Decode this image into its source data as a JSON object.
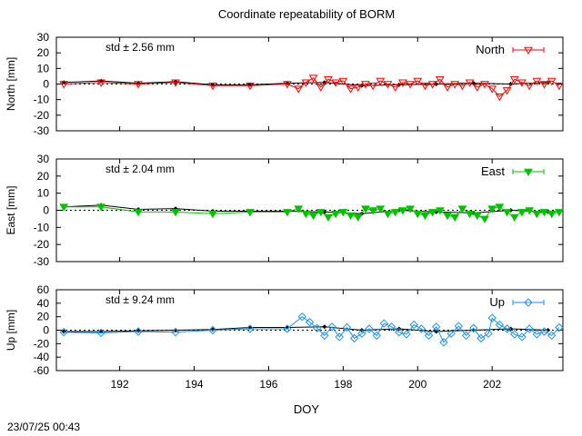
{
  "title": "Coordinate repeatability of BORM",
  "xlabel": "DOY",
  "timestamp": "23/07/25 00:43",
  "chart_data": [
    {
      "type": "line",
      "name": "North",
      "ylabel": "North [mm]",
      "std_label": "std ± 2.56 mm",
      "color": "#ff0000",
      "marker": "triangle-down-open",
      "xlim": [
        190.3,
        203.9
      ],
      "ylim": [
        -30,
        30
      ],
      "yticks": [
        -30,
        -20,
        -10,
        0,
        10,
        20,
        30
      ],
      "xticks": [
        192,
        194,
        196,
        198,
        200,
        202
      ],
      "daily": {
        "x": [
          190.5,
          191.5,
          192.5,
          193.5,
          194.5,
          195.5,
          196.5,
          197.5,
          198.5,
          199.5,
          200.5,
          201.5,
          202.5,
          203.5
        ],
        "y": [
          1,
          2,
          0.5,
          1.5,
          -0.5,
          -0.5,
          0.5,
          1,
          -1,
          -0.5,
          0,
          0.5,
          0,
          1
        ]
      },
      "series": [
        {
          "name": "North",
          "x": [
            190.5,
            191.5,
            192.5,
            193.5,
            194.5,
            195.5,
            196.5,
            196.8,
            197.0,
            197.2,
            197.4,
            197.6,
            197.8,
            198.0,
            198.2,
            198.4,
            198.6,
            198.8,
            199.0,
            199.2,
            199.4,
            199.6,
            199.8,
            200.0,
            200.2,
            200.4,
            200.6,
            200.8,
            201.0,
            201.2,
            201.4,
            201.6,
            201.8,
            202.0,
            202.2,
            202.4,
            202.6,
            202.8,
            203.0,
            203.2,
            203.4,
            203.6,
            203.8
          ],
          "y": [
            0,
            1,
            0,
            1,
            -1,
            -1,
            0,
            -3,
            1,
            4,
            -2,
            3,
            1,
            2,
            -3,
            -2,
            0,
            -1,
            2,
            0,
            -2,
            1,
            0,
            2,
            -1,
            0,
            3,
            -2,
            0,
            -1,
            1,
            -2,
            0,
            -3,
            -8,
            -4,
            3,
            1,
            -1,
            2,
            0,
            2,
            -1
          ]
        }
      ]
    },
    {
      "type": "line",
      "name": "East",
      "ylabel": "East [mm]",
      "std_label": "std ± 2.04 mm",
      "color": "#00c000",
      "marker": "triangle-down-filled",
      "xlim": [
        190.3,
        203.9
      ],
      "ylim": [
        -30,
        30
      ],
      "yticks": [
        -30,
        -20,
        -10,
        0,
        10,
        20,
        30
      ],
      "xticks": [
        192,
        194,
        196,
        198,
        200,
        202
      ],
      "daily": {
        "x": [
          190.5,
          191.5,
          192.5,
          193.5,
          194.5,
          195.5,
          196.5,
          197.5,
          198.5,
          199.5,
          200.5,
          201.5,
          202.5,
          203.5
        ],
        "y": [
          2,
          3,
          0.5,
          1,
          -0.5,
          -0.5,
          -0.5,
          -1,
          -2,
          0,
          -1,
          -1.5,
          0,
          -1
        ]
      },
      "series": [
        {
          "name": "East",
          "x": [
            190.5,
            191.5,
            192.5,
            193.5,
            194.5,
            195.5,
            196.5,
            196.8,
            197.0,
            197.2,
            197.4,
            197.6,
            197.8,
            198.0,
            198.2,
            198.4,
            198.6,
            198.8,
            199.0,
            199.2,
            199.4,
            199.6,
            199.8,
            200.0,
            200.2,
            200.4,
            200.6,
            200.8,
            201.0,
            201.2,
            201.4,
            201.6,
            201.8,
            202.0,
            202.2,
            202.4,
            202.6,
            202.8,
            203.0,
            203.2,
            203.4,
            203.6,
            203.8
          ],
          "y": [
            2,
            2,
            -1,
            -1,
            -2,
            -1,
            -1,
            1,
            -2,
            -3,
            -1,
            -4,
            -2,
            -1,
            -3,
            -4,
            1,
            0,
            1,
            -2,
            -1,
            0,
            1,
            -2,
            -3,
            -1,
            0,
            -3,
            -4,
            1,
            -2,
            -3,
            -5,
            1,
            2,
            -1,
            -4,
            -1,
            0,
            -2,
            -1,
            -2,
            -1
          ]
        }
      ]
    },
    {
      "type": "line",
      "name": "Up",
      "ylabel": "Up [mm]",
      "std_label": "std ± 9.24 mm",
      "color": "#1e90e6",
      "marker": "diamond-open",
      "xlim": [
        190.3,
        203.9
      ],
      "ylim": [
        -60,
        60
      ],
      "yticks": [
        -60,
        -40,
        -20,
        0,
        20,
        40,
        60
      ],
      "xticks": [
        192,
        194,
        196,
        198,
        200,
        202
      ],
      "daily": {
        "x": [
          190.5,
          191.5,
          192.5,
          193.5,
          194.5,
          195.5,
          196.5,
          197.5,
          198.5,
          199.5,
          200.5,
          201.5,
          202.5,
          203.5
        ],
        "y": [
          -2,
          -2,
          -1,
          0,
          1,
          4,
          4,
          5,
          0,
          2,
          -2,
          0,
          2,
          0
        ]
      },
      "series": [
        {
          "name": "Up",
          "x": [
            190.5,
            191.5,
            192.5,
            193.5,
            194.5,
            195.5,
            196.5,
            196.9,
            197.1,
            197.3,
            197.5,
            197.7,
            197.9,
            198.1,
            198.3,
            198.5,
            198.7,
            198.9,
            199.1,
            199.3,
            199.5,
            199.7,
            199.9,
            200.1,
            200.3,
            200.5,
            200.7,
            200.9,
            201.1,
            201.3,
            201.5,
            201.7,
            201.9,
            202.0,
            202.2,
            202.4,
            202.6,
            202.8,
            203.0,
            203.2,
            203.4,
            203.6,
            203.8
          ],
          "y": [
            -3,
            -4,
            -2,
            -3,
            0,
            2,
            2,
            20,
            12,
            3,
            -8,
            5,
            -10,
            4,
            -12,
            -5,
            2,
            -8,
            10,
            5,
            -3,
            -6,
            8,
            2,
            -8,
            5,
            -18,
            -5,
            6,
            -8,
            3,
            -12,
            -5,
            18,
            8,
            2,
            -6,
            -10,
            2,
            -6,
            -2,
            -8,
            4
          ]
        }
      ]
    }
  ]
}
